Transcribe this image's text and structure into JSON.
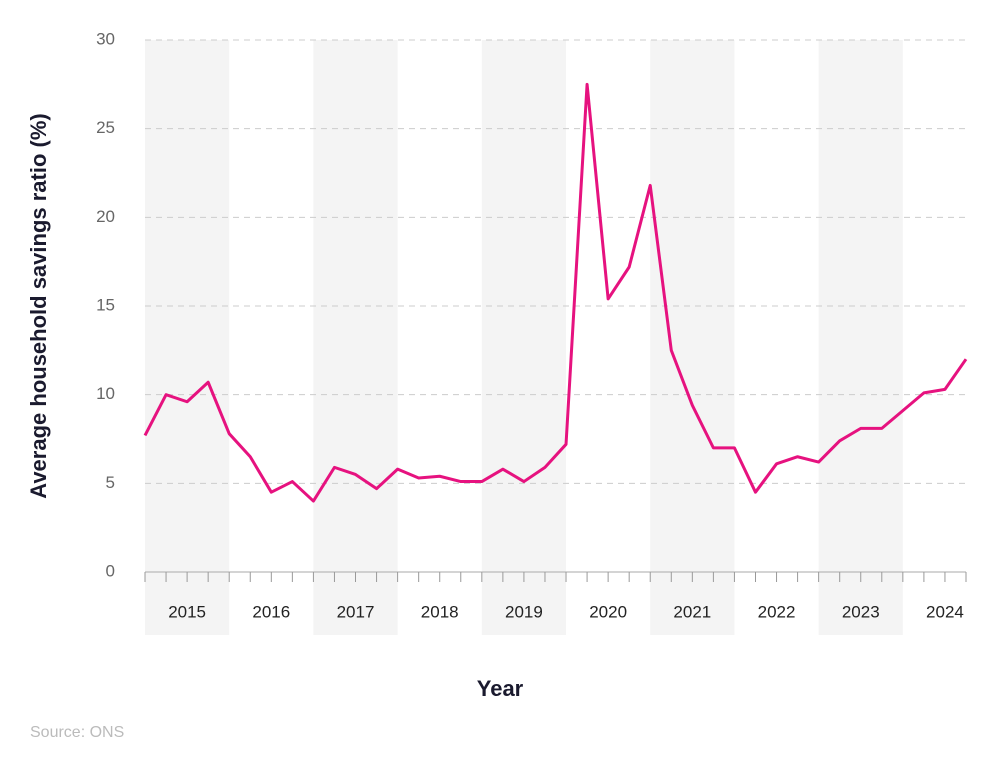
{
  "chart_data": {
    "type": "line",
    "y_label": "Average household savings ratio (%)",
    "x_label": "Year",
    "source": "Source: ONS",
    "x": [
      2015,
      2015.25,
      2015.5,
      2015.75,
      2016,
      2016.25,
      2016.5,
      2016.75,
      2017,
      2017.25,
      2017.5,
      2017.75,
      2018,
      2018.25,
      2018.5,
      2018.75,
      2019,
      2019.25,
      2019.5,
      2019.75,
      2020,
      2020.25,
      2020.5,
      2020.75,
      2021,
      2021.25,
      2021.5,
      2021.75,
      2022,
      2022.25,
      2022.5,
      2022.75,
      2023,
      2023.25,
      2023.5,
      2023.75,
      2024,
      2024.25,
      2024.5,
      2024.75
    ],
    "series": [
      {
        "color": "#e6127f",
        "values": [
          7.7,
          10.0,
          9.6,
          10.7,
          7.8,
          6.5,
          4.5,
          5.1,
          4.0,
          5.9,
          5.5,
          4.7,
          5.8,
          5.3,
          5.4,
          5.1,
          5.1,
          5.8,
          5.1,
          5.9,
          7.2,
          27.5,
          15.4,
          17.2,
          21.8,
          12.5,
          9.4,
          7.0,
          7.0,
          4.5,
          6.1,
          6.5,
          6.2,
          7.4,
          8.1,
          8.1,
          9.1,
          10.1,
          10.3,
          12.0
        ]
      }
    ],
    "xlim": [
      2015,
      2024.75
    ],
    "xticks": [
      {
        "value": 2015.5,
        "label": "2015"
      },
      {
        "value": 2016.5,
        "label": "2016"
      },
      {
        "value": 2017.5,
        "label": "2017"
      },
      {
        "value": 2018.5,
        "label": "2018"
      },
      {
        "value": 2019.5,
        "label": "2019"
      },
      {
        "value": 2020.5,
        "label": "2020"
      },
      {
        "value": 2021.5,
        "label": "2021"
      },
      {
        "value": 2022.5,
        "label": "2022"
      },
      {
        "value": 2023.5,
        "label": "2023"
      },
      {
        "value": 2024.5,
        "label": "2024"
      }
    ],
    "ylim": [
      0,
      30
    ],
    "yticks": [
      0,
      5,
      10,
      15,
      20,
      25,
      30
    ],
    "grid": true
  }
}
